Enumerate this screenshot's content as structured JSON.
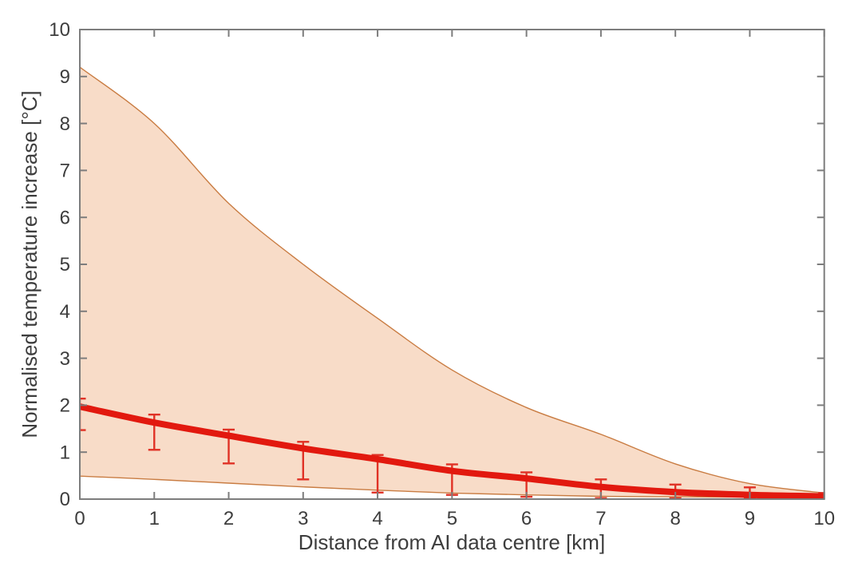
{
  "chart_data": {
    "type": "line",
    "xlabel": "Distance from AI data centre [km]",
    "ylabel": "Normalised temperature increase [°C]",
    "xlim": [
      0,
      10
    ],
    "ylim": [
      0,
      10
    ],
    "xticks": [
      0,
      1,
      2,
      3,
      4,
      5,
      6,
      7,
      8,
      9,
      10
    ],
    "yticks": [
      0,
      1,
      2,
      3,
      4,
      5,
      6,
      7,
      8,
      9,
      10
    ],
    "grid": false,
    "legend": "none",
    "x": [
      0,
      1,
      2,
      3,
      4,
      5,
      6,
      7,
      8,
      9,
      10
    ],
    "series": [
      {
        "name": "mean_temperature_increase",
        "role": "line",
        "values": [
          1.97,
          1.63,
          1.35,
          1.08,
          0.85,
          0.6,
          0.44,
          0.26,
          0.15,
          0.09,
          0.06
        ]
      },
      {
        "name": "errorbar_upper_cap",
        "role": "error_top",
        "values": [
          2.14,
          1.8,
          1.48,
          1.22,
          0.94,
          0.74,
          0.57,
          0.42,
          0.31,
          0.25,
          0.13
        ]
      },
      {
        "name": "errorbar_lower_cap",
        "role": "error_bottom",
        "values": [
          1.47,
          1.05,
          0.76,
          0.42,
          0.14,
          0.09,
          0.05,
          0.02,
          0.02,
          0.01,
          0.01
        ]
      },
      {
        "name": "uncertainty_band_upper",
        "role": "band_upper",
        "values": [
          9.2,
          8.0,
          6.3,
          5.0,
          3.85,
          2.75,
          1.95,
          1.38,
          0.75,
          0.33,
          0.13
        ]
      },
      {
        "name": "uncertainty_band_lower",
        "role": "band_lower",
        "values": [
          0.49,
          0.42,
          0.34,
          0.26,
          0.19,
          0.13,
          0.09,
          0.06,
          0.05,
          0.04,
          0.03
        ]
      }
    ],
    "colors": {
      "line_red": "#e2190f",
      "error_red": "#e03226",
      "band_fill": "#f8dcc8",
      "band_edge": "#c97c42",
      "axis_gray": "#7d7d7d",
      "text": "#3d3d3d",
      "background": "#ffffff"
    }
  }
}
